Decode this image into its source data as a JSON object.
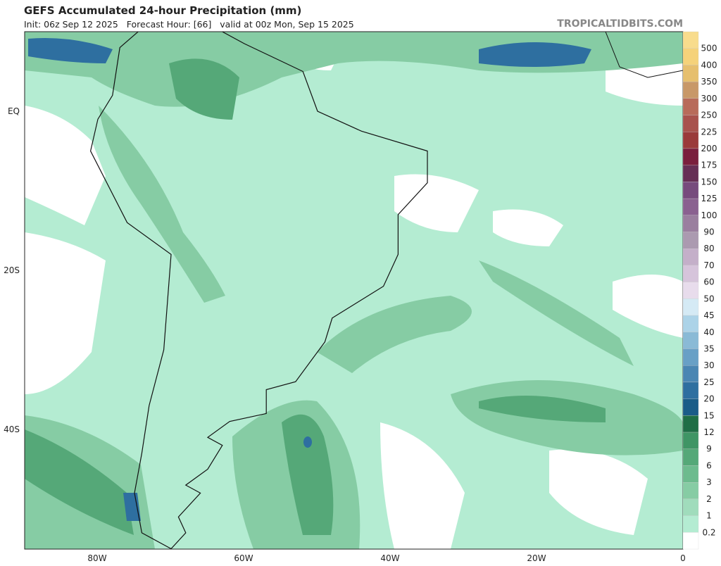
{
  "header": {
    "title": "GEFS Accumulated 24-hour Precipitation (mm)",
    "subtitle": "Init: 06z Sep 12 2025   Forecast Hour: [66]   valid at 00z Mon, Sep 15 2025",
    "brand": "TROPICALTIDBITS.COM"
  },
  "map": {
    "lat_labels": [
      "EQ",
      "20S",
      "40S"
    ],
    "lon_labels": [
      "80W",
      "60W",
      "40W",
      "20W",
      "0"
    ]
  },
  "colorbar": {
    "labels": [
      "500",
      "400",
      "350",
      "300",
      "250",
      "225",
      "200",
      "175",
      "150",
      "125",
      "100",
      "90",
      "80",
      "70",
      "60",
      "50",
      "45",
      "40",
      "35",
      "30",
      "25",
      "20",
      "15",
      "12",
      "9",
      "6",
      "3",
      "2",
      "1",
      "0.2"
    ],
    "colors": [
      "#f8dc8c",
      "#f5d27a",
      "#e6bf6e",
      "#c89868",
      "#b86b5a",
      "#a8524d",
      "#9a3a3a",
      "#7a1f3d",
      "#662f55",
      "#774b7d",
      "#8a6190",
      "#9a7f9f",
      "#ab9ab0",
      "#c4afc9",
      "#d6c4db",
      "#e8dcec",
      "#d5eaf5",
      "#acd3e8",
      "#8abad6",
      "#68a0c6",
      "#4a86b3",
      "#2e6fa0",
      "#1a5c88",
      "#1f6e46",
      "#3f9565",
      "#55a878",
      "#6dbb8e",
      "#86cca4",
      "#a0dcbc",
      "#b4ecd2",
      "#ffffff"
    ]
  }
}
